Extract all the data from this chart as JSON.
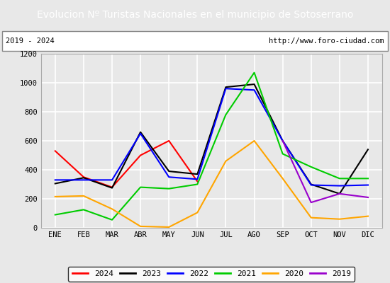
{
  "title": "Evolucion Nº Turistas Nacionales en el municipio de Sotoserrano",
  "subtitle_left": "2019 - 2024",
  "subtitle_right": "http://www.foro-ciudad.com",
  "months": [
    "ENE",
    "FEB",
    "MAR",
    "ABR",
    "MAY",
    "JUN",
    "JUL",
    "AGO",
    "SEP",
    "OCT",
    "NOV",
    "DIC"
  ],
  "ylim": [
    0,
    1200
  ],
  "yticks": [
    0,
    200,
    400,
    600,
    800,
    1000,
    1200
  ],
  "series": {
    "2024": {
      "color": "#ff0000",
      "data": [
        530,
        350,
        280,
        500,
        600,
        320,
        null,
        null,
        null,
        null,
        null,
        null
      ]
    },
    "2023": {
      "color": "#000000",
      "data": [
        305,
        345,
        275,
        660,
        390,
        370,
        970,
        990,
        600,
        300,
        235,
        540
      ]
    },
    "2022": {
      "color": "#0000ff",
      "data": [
        330,
        330,
        330,
        650,
        350,
        335,
        960,
        950,
        600,
        295,
        290,
        295
      ]
    },
    "2021": {
      "color": "#00cc00",
      "data": [
        90,
        125,
        55,
        280,
        270,
        300,
        780,
        1070,
        510,
        420,
        340,
        340
      ]
    },
    "2020": {
      "color": "#ffa500",
      "data": [
        215,
        220,
        130,
        10,
        5,
        105,
        460,
        600,
        340,
        70,
        60,
        80
      ]
    },
    "2019": {
      "color": "#9900cc",
      "data": [
        null,
        null,
        null,
        null,
        null,
        null,
        null,
        null,
        600,
        175,
        235,
        210
      ]
    }
  },
  "title_bg_color": "#4472c4",
  "title_font_color": "#ffffff",
  "title_fontsize": 10,
  "background_color": "#e8e8e8",
  "plot_bg_color": "#e8e8e8",
  "grid_color": "#ffffff",
  "border_color": "#4472c4",
  "linewidth": 1.5
}
